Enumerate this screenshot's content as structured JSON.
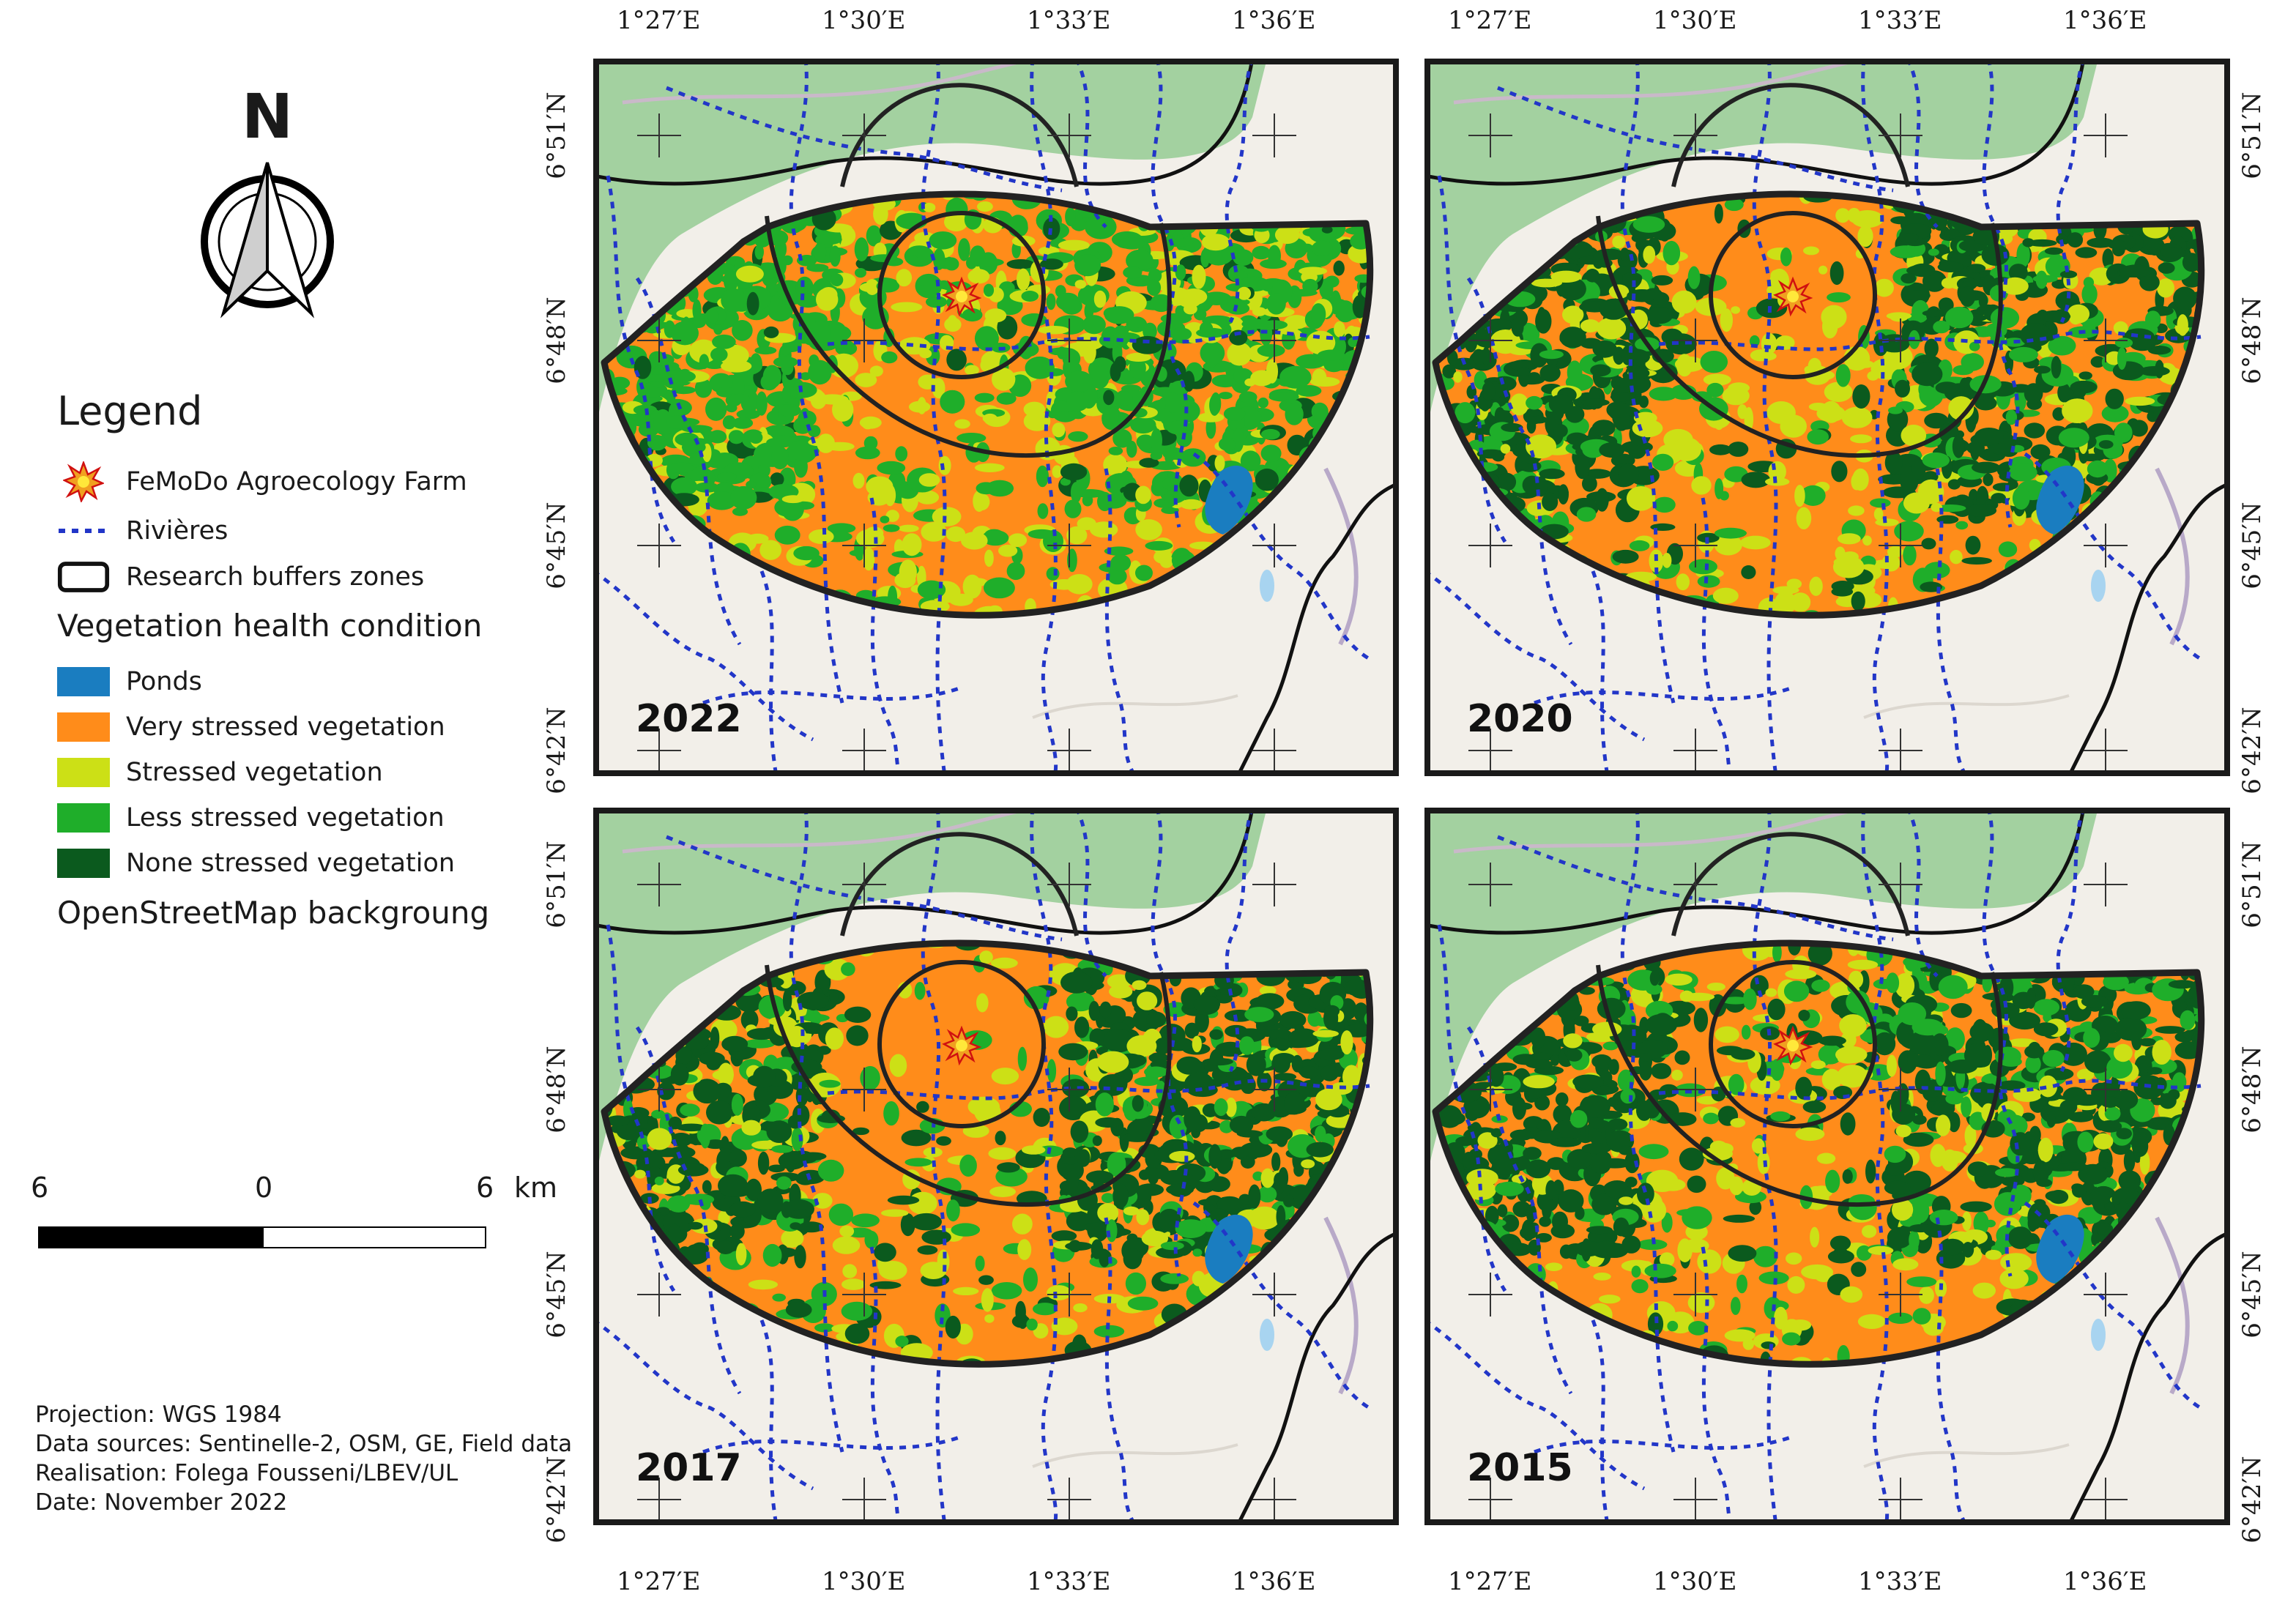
{
  "north": {
    "letter": "N",
    "icon": "north-arrow-icon"
  },
  "legend": {
    "title": "Legend",
    "items": [
      {
        "label": "FeMoDo Agroecology Farm",
        "icon": "farm-star-icon"
      },
      {
        "label": "Rivières",
        "icon": "river-line-icon"
      },
      {
        "label": "Research buffers zones",
        "icon": "buffer-outline-icon"
      }
    ],
    "vegetation_heading": "Vegetation health condition",
    "vegetation_classes": [
      {
        "label": "Ponds",
        "color": "#1a7dc0"
      },
      {
        "label": "Very stressed vegetation",
        "color": "#ff8c1a"
      },
      {
        "label": "Stressed vegetation",
        "color": "#cce016"
      },
      {
        "label": "Less stressed vegetation",
        "color": "#1fae2a"
      },
      {
        "label": "None stressed vegetation",
        "color": "#0b5a1e"
      }
    ],
    "basemap_label": "OpenStreetMap backgroung"
  },
  "scale": {
    "left": "6",
    "mid": "0",
    "right": "6",
    "unit": "km"
  },
  "credits": {
    "projection": "Projection: WGS 1984",
    "sources": "Data sources: Sentinelle-2, OSM, GE, Field data",
    "realisation": "Realisation: Folega Fousseni/LBEV/UL",
    "date": "Date: November 2022"
  },
  "coordinates": {
    "longitudes": [
      "1°27′E",
      "1°30′E",
      "1°33′E",
      "1°36′E"
    ],
    "latitudes": [
      "6°51′N",
      "6°48′N",
      "6°45′N",
      "6°42′N"
    ]
  },
  "panels": [
    {
      "year": "2022"
    },
    {
      "year": "2020"
    },
    {
      "year": "2017"
    },
    {
      "year": "2015"
    }
  ],
  "colors": {
    "ponds": "#1a7dc0",
    "very_stressed": "#ff8c1a",
    "stressed": "#cce016",
    "less_stressed": "#1fae2a",
    "none_stressed": "#0b5a1e",
    "forest": "#a3d1a0",
    "basemap": "#f2efe9",
    "river": "#2236c8"
  }
}
